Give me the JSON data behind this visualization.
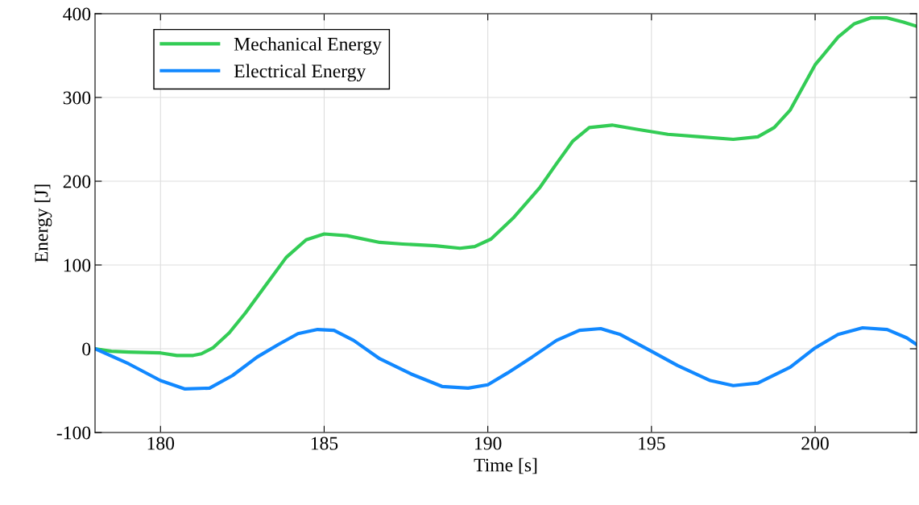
{
  "chart_data": {
    "type": "line",
    "xlabel": "Time [s]",
    "ylabel": "Energy [J]",
    "xlim": [
      178,
      203.1
    ],
    "xticks": [
      180,
      185,
      190,
      195,
      200
    ],
    "ylim": [
      -100,
      400
    ],
    "yticks": [
      {
        "value": -100,
        "label": "-100"
      },
      0,
      100,
      200,
      300,
      400
    ],
    "grid": true,
    "legend": "top left",
    "marker": "none",
    "line_style": "solid",
    "series": [
      {
        "name": "Mechanical Energy",
        "color": "#33cc55",
        "x": [
          178,
          178.5,
          179.03,
          180,
          180.5,
          181,
          181.25,
          181.6,
          182.1,
          182.6,
          183.2,
          183.84,
          184.45,
          185,
          185.7,
          186.7,
          187.4,
          188.4,
          189.15,
          189.6,
          190.1,
          190.8,
          191.6,
          192.1,
          192.6,
          193.1,
          193.8,
          194.55,
          195.5,
          196.5,
          197.5,
          198.25,
          198.75,
          199.24,
          200,
          200.7,
          201.2,
          201.7,
          202.2,
          202.7,
          203.1
        ],
        "values": [
          0,
          -3,
          -4,
          -5,
          -8,
          -8,
          -6,
          1,
          19,
          43,
          75,
          109,
          130,
          137,
          135,
          127,
          125,
          123,
          120,
          122,
          131,
          157,
          193,
          221,
          248,
          264,
          267,
          262,
          256,
          253,
          250,
          253,
          264,
          285,
          339,
          372,
          388,
          395,
          395,
          390,
          385
        ]
      },
      {
        "name": "Electrical Energy",
        "color": "#1188ff",
        "x": [
          178,
          179.03,
          180,
          180.75,
          181.5,
          182.2,
          182.95,
          183.6,
          184.2,
          184.8,
          185.3,
          185.9,
          186.7,
          187.65,
          188.6,
          189.4,
          190,
          190.6,
          191.35,
          192.1,
          192.8,
          193.45,
          194.05,
          195,
          195.8,
          196.8,
          197.5,
          198.25,
          199.24,
          200,
          200.7,
          201.45,
          202.2,
          202.8,
          203.1
        ],
        "values": [
          0,
          -18,
          -38,
          -48,
          -47,
          -32,
          -10,
          5,
          18,
          23,
          22,
          10,
          -12,
          -30,
          -45,
          -47,
          -43,
          -29,
          -10,
          10,
          22,
          24,
          17,
          -3,
          -20,
          -38,
          -44,
          -41,
          -22,
          1,
          17,
          25,
          23,
          13,
          5
        ]
      }
    ]
  }
}
